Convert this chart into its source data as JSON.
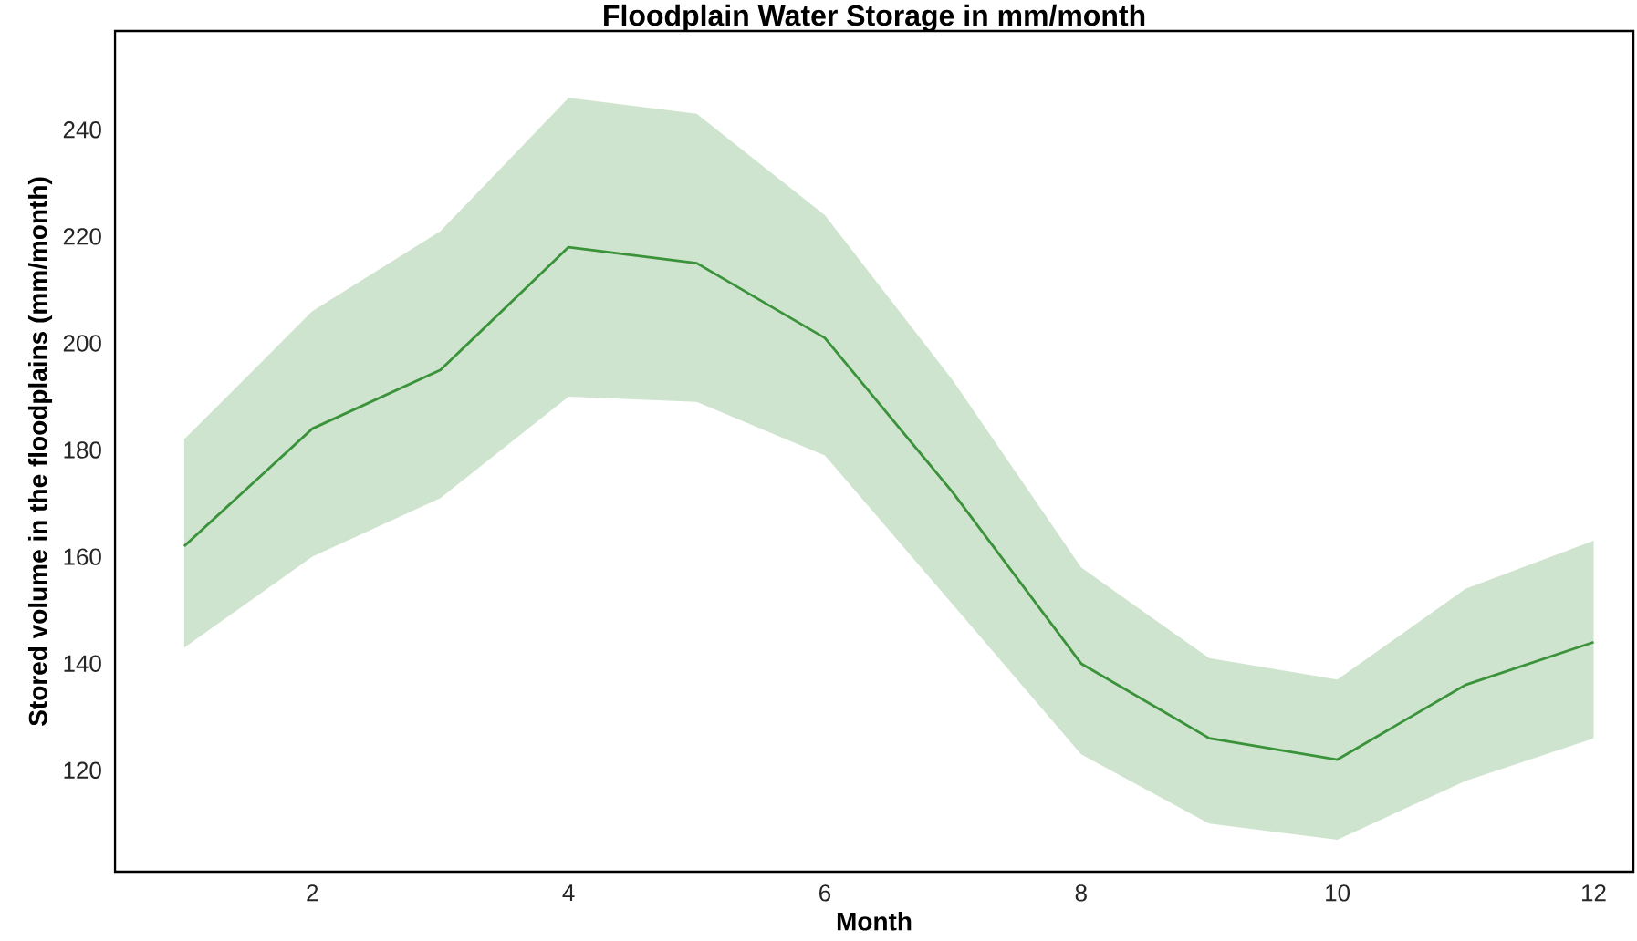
{
  "chart_data": {
    "type": "line",
    "title": "Floodplain Water Storage in mm/month",
    "xlabel": "Month",
    "ylabel": "Stored volume in the floodplains (mm/month)",
    "x": [
      1,
      2,
      3,
      4,
      5,
      6,
      7,
      8,
      9,
      10,
      11,
      12
    ],
    "series": [
      {
        "color": "#3a923a",
        "values": [
          162,
          184,
          195,
          218,
          215,
          201,
          172,
          140,
          126,
          122,
          136,
          144
        ],
        "lower": [
          143,
          160,
          171,
          190,
          189,
          179,
          151,
          123,
          110,
          107,
          118,
          126
        ],
        "upper": [
          182,
          206,
          221,
          246,
          243,
          224,
          193,
          158,
          141,
          137,
          154,
          163
        ]
      }
    ],
    "xlim": [
      0.46,
      12.31
    ],
    "ylim": [
      101,
      258.5
    ],
    "xticks": [
      2,
      4,
      6,
      8,
      10,
      12
    ],
    "yticks": [
      120,
      140,
      160,
      180,
      200,
      220,
      240
    ],
    "grid": false,
    "marker": "none",
    "line_style": "solid"
  }
}
